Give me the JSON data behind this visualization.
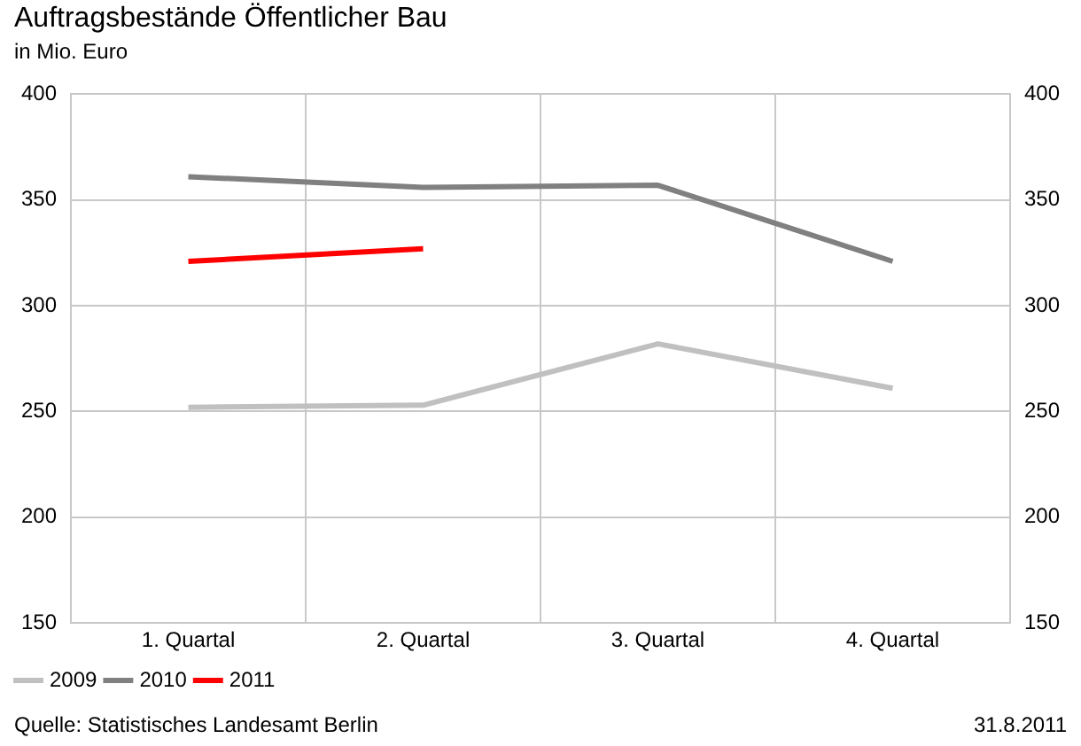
{
  "chart_data": {
    "type": "line",
    "title": "Auftragsbestände Öffentlicher Bau",
    "subtitle": "in Mio. Euro",
    "categories": [
      "1. Quartal",
      "2. Quartal",
      "3. Quartal",
      "4. Quartal"
    ],
    "series": [
      {
        "name": "2009",
        "color": "#c0c0c0",
        "values": [
          252,
          253,
          282,
          261
        ]
      },
      {
        "name": "2010",
        "color": "#808080",
        "values": [
          361,
          356,
          357,
          321
        ]
      },
      {
        "name": "2011",
        "color": "#ff0000",
        "values": [
          321,
          327,
          null,
          null
        ]
      }
    ],
    "ylim": [
      150,
      400
    ],
    "yticks": [
      150,
      200,
      250,
      300,
      350,
      400
    ],
    "y2lim": [
      150,
      400
    ],
    "y2ticks": [
      150,
      200,
      250,
      300,
      350,
      400
    ],
    "grid": true,
    "legend": "bottom left",
    "marker": "none",
    "line_style": "solid",
    "annotations": [
      "Quelle: Statistisches Landesamt Berlin",
      "31.8.2011"
    ]
  }
}
